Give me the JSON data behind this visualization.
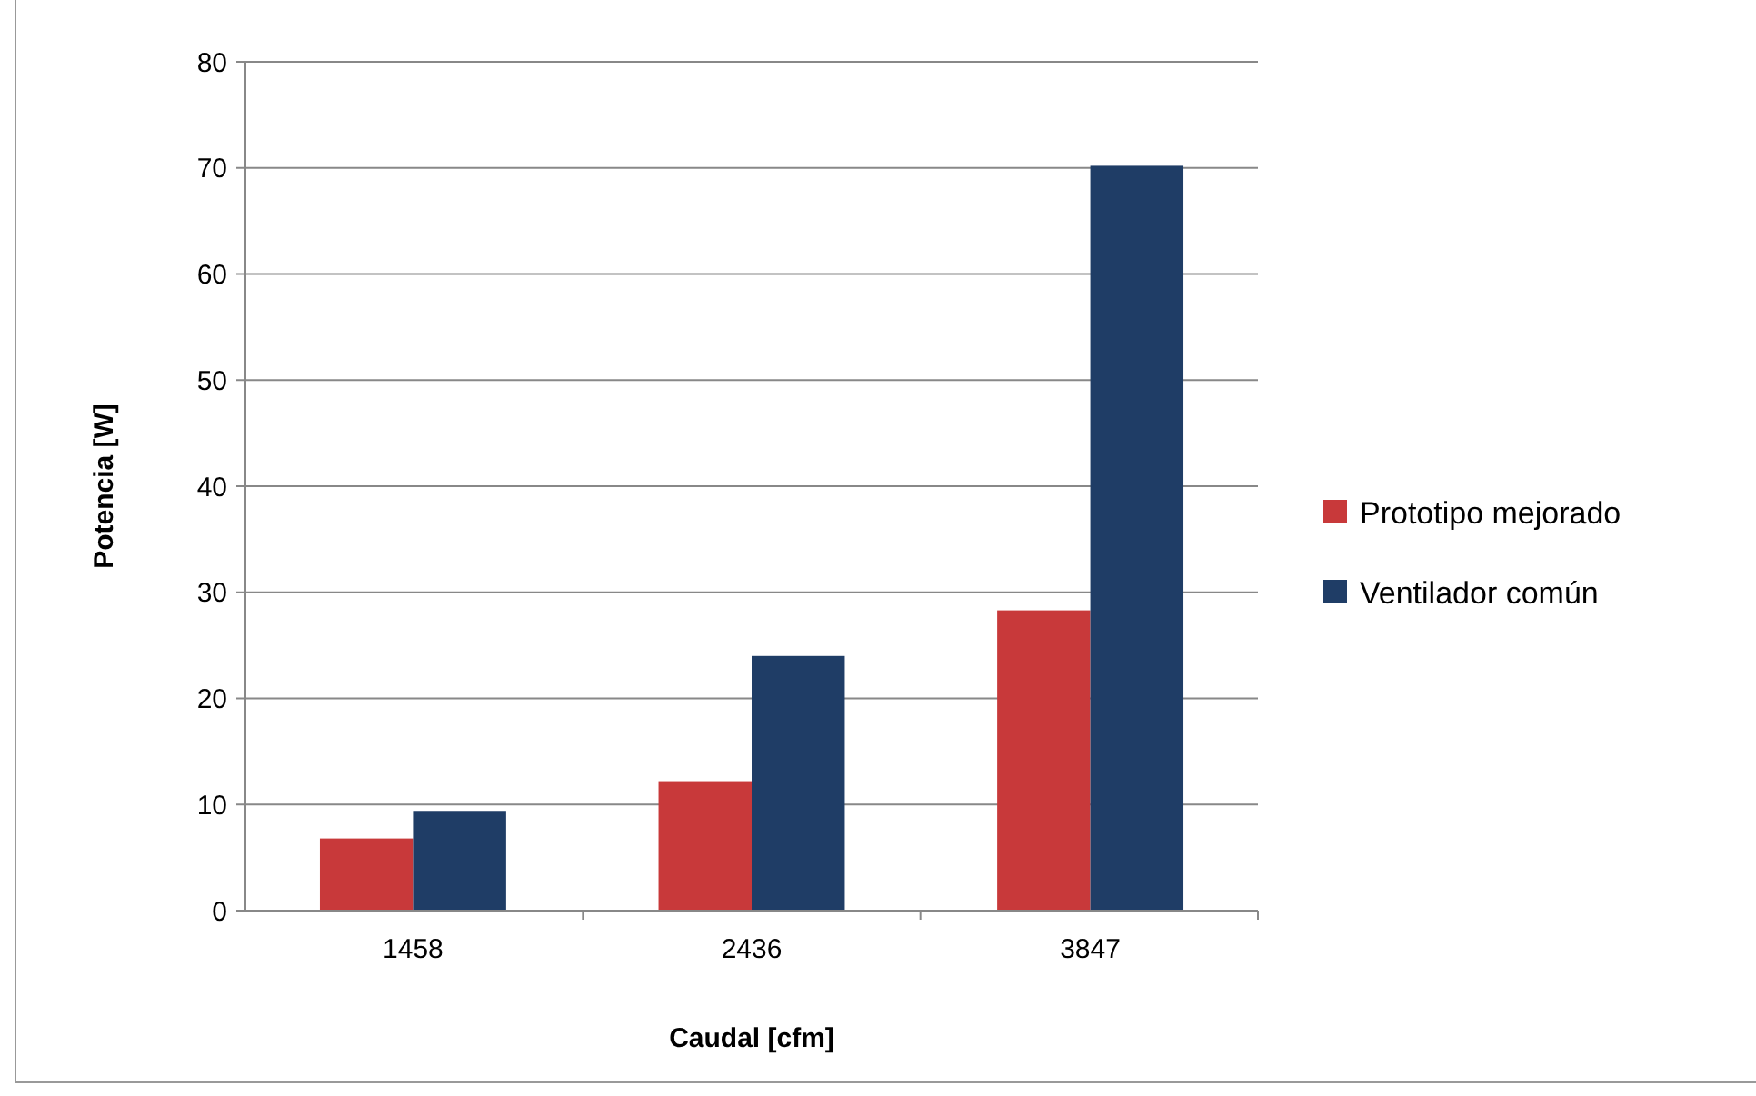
{
  "chart_data": {
    "type": "bar",
    "xlabel": "Caudal [cfm]",
    "ylabel": "Potencia [W]",
    "categories": [
      "1458",
      "2436",
      "3847"
    ],
    "series": [
      {
        "name": "Prototipo mejorado",
        "color": "#c8393a",
        "values": [
          6.8,
          12.2,
          28.3
        ]
      },
      {
        "name": "Ventilador común",
        "color": "#1f3d66",
        "values": [
          9.4,
          24,
          70.2
        ]
      }
    ],
    "ylim": [
      0,
      80
    ],
    "yticks": [
      0,
      10,
      20,
      30,
      40,
      50,
      60,
      70,
      80
    ],
    "grid": "y",
    "legend": "right"
  }
}
